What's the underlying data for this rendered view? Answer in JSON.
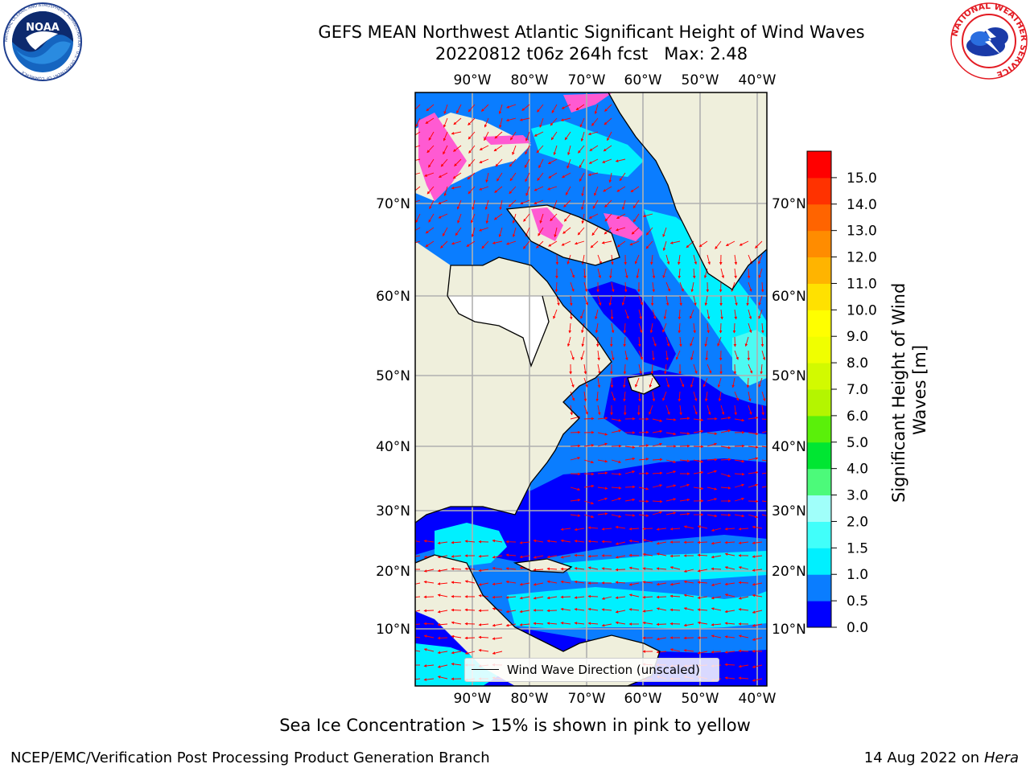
{
  "title": {
    "line1": "GEFS MEAN Northwest Atlantic Significant Height of Wind Waves",
    "line2": "20220812 t06z 264h fcst   Max: 2.48"
  },
  "logos": {
    "noaa_text": "NOAA",
    "noaa_ring": "NATIONAL OCEANIC AND ATMOSPHERIC ADMINISTRATION · U.S. DEPARTMENT OF COMMERCE",
    "nws_ring": "NATIONAL WEATHER SERVICE"
  },
  "map": {
    "lon_labels": [
      "90°W",
      "80°W",
      "70°W",
      "60°W",
      "50°W",
      "40°W"
    ],
    "lat_labels": [
      "70°N",
      "60°N",
      "50°N",
      "40°N",
      "30°N",
      "20°N",
      "10°N"
    ],
    "legend_label": "Wind Wave Direction (unscaled)",
    "colors": {
      "land": "#efefdc",
      "greenland": "#ffffff",
      "wave_0_05": "#0000ff",
      "wave_05_10": "#0a7dff",
      "wave_10_15": "#00f0ff",
      "wave_15_20": "#4cfaf2",
      "ice": "#ff5ad2",
      "arrow": "#ff0000",
      "grid": "#b0b0b0"
    }
  },
  "colorbar": {
    "title": "Significant Height of Wind Waves [m]",
    "title_lines": [
      "Significant Height of Wind",
      "Waves [m]"
    ],
    "ticks": [
      "0.0",
      "0.5",
      "1.0",
      "1.5",
      "2.0",
      "3.0",
      "4.0",
      "5.0",
      "6.0",
      "7.0",
      "8.0",
      "9.0",
      "10.0",
      "11.0",
      "12.0",
      "13.0",
      "14.0",
      "15.0"
    ],
    "colors": [
      "#0000ff",
      "#0a7dff",
      "#00f0ff",
      "#41fffa",
      "#a0fffa",
      "#4cfa7a",
      "#00e632",
      "#5af00a",
      "#b4f500",
      "#d2fa00",
      "#f0ff00",
      "#ffff00",
      "#ffe100",
      "#ffb400",
      "#ff8c00",
      "#ff6400",
      "#ff3200",
      "#ff0000"
    ]
  },
  "footer": {
    "caption": "Sea Ice Concentration > 15% is shown in pink to yellow",
    "credit_left": "NCEP/EMC/Verification Post Processing Product Generation Branch",
    "credit_date": "14 Aug 2022 on",
    "credit_host": "Hera"
  }
}
